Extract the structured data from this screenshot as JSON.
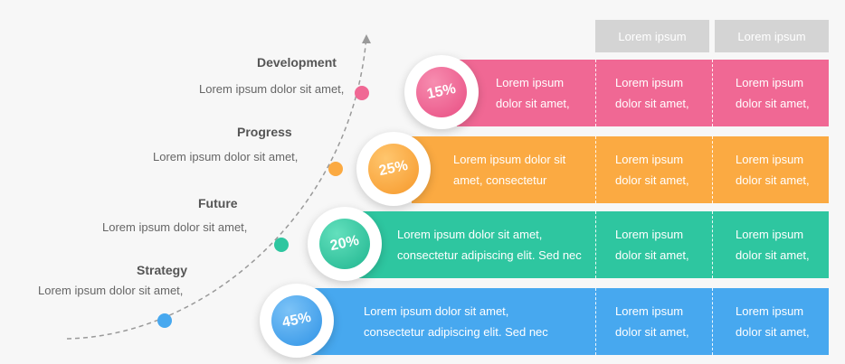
{
  "column_headers": [
    "Lorem ipsum",
    "Lorem ipsum"
  ],
  "rows": [
    {
      "title": "Development",
      "text": "Lorem ipsum dolor sit amet,",
      "percent": "15%",
      "color": "#f06894",
      "desc_line1": "Lorem ipsum",
      "desc_line2": "dolor sit amet,",
      "c1_line1": "Lorem ipsum",
      "c1_line2": "dolor sit amet,",
      "c2_line1": "Lorem ipsum",
      "c2_line2": "dolor sit amet,"
    },
    {
      "title": "Progress",
      "text": "Lorem ipsum dolor sit amet,",
      "percent": "25%",
      "color": "#fbaa42",
      "desc_line1": "Lorem ipsum dolor sit",
      "desc_line2": "amet, consectetur",
      "c1_line1": "Lorem ipsum",
      "c1_line2": "dolor sit amet,",
      "c2_line1": "Lorem ipsum",
      "c2_line2": "dolor sit amet,"
    },
    {
      "title": "Future",
      "text": "Lorem ipsum dolor sit amet,",
      "percent": "20%",
      "color": "#2ec6a0",
      "desc_line1": "Lorem ipsum dolor sit amet,",
      "desc_line2": "consectetur adipiscing elit. Sed nec",
      "c1_line1": "Lorem ipsum",
      "c1_line2": "dolor sit amet,",
      "c2_line1": "Lorem ipsum",
      "c2_line2": "dolor sit amet,"
    },
    {
      "title": "Strategy",
      "text": "Lorem ipsum dolor sit amet,",
      "percent": "45%",
      "color": "#47a8ef",
      "desc_line1": "Lorem ipsum dolor sit amet,",
      "desc_line2": "consectetur adipiscing elit. Sed nec",
      "c1_line1": "Lorem ipsum",
      "c1_line2": "dolor sit amet,",
      "c2_line1": "Lorem ipsum",
      "c2_line2": "dolor sit amet,"
    }
  ]
}
